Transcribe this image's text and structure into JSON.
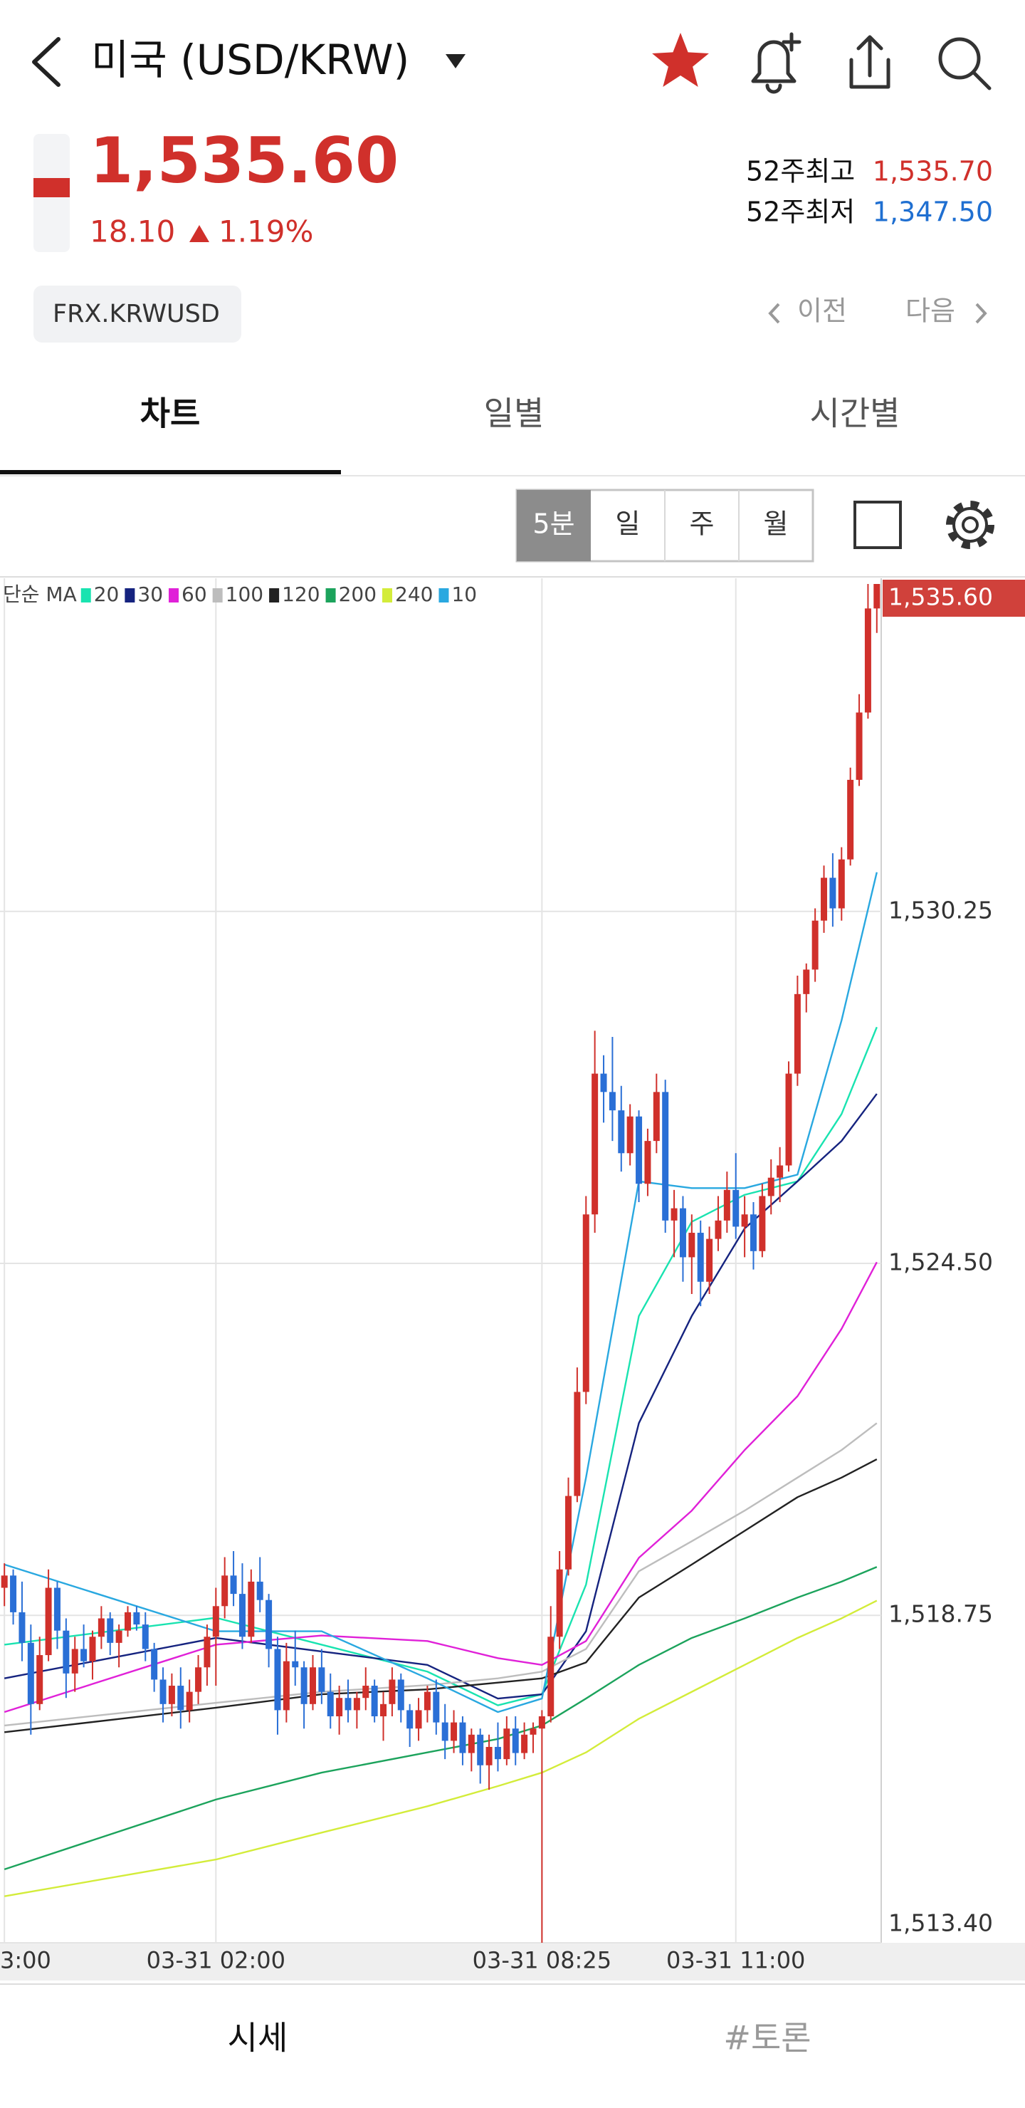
{
  "header": {
    "title": "미국 (USD/KRW)"
  },
  "quote": {
    "price": "1,535.60",
    "change": "18.10",
    "change_pct": "1.19%",
    "high_52w_label": "52주최고",
    "high_52w": "1,535.70",
    "low_52w_label": "52주최저",
    "low_52w": "1,347.50",
    "code": "FRX.KRWUSD",
    "prev": "이전",
    "next": "다음"
  },
  "tabs": [
    "차트",
    "일별",
    "시간별"
  ],
  "periods": [
    "5분",
    "일",
    "주",
    "월"
  ],
  "chart_data": {
    "type": "candlestick",
    "up_color": "#d0302b",
    "down_color": "#2a6fd6",
    "ylim": [
      1513.4,
      1535.6
    ],
    "yticks": [
      {
        "value": 1513.4,
        "label": "1,513.40"
      },
      {
        "value": 1518.75,
        "label": "1,518.75"
      },
      {
        "value": 1524.5,
        "label": "1,524.50"
      },
      {
        "value": 1530.25,
        "label": "1,530.25"
      }
    ],
    "grid": true,
    "last_price": {
      "value": 1535.6,
      "label": "1,535.60"
    },
    "categories": [
      "3:00",
      null,
      null,
      null,
      null,
      null,
      null,
      null,
      null,
      null,
      null,
      null,
      null,
      null,
      null,
      null,
      null,
      null,
      null,
      null,
      null,
      null,
      null,
      null,
      "03-31 02:00",
      null,
      null,
      null,
      null,
      null,
      null,
      null,
      null,
      null,
      null,
      null,
      null,
      null,
      null,
      null,
      null,
      null,
      null,
      null,
      null,
      null,
      null,
      null,
      null,
      null,
      null,
      null,
      null,
      null,
      null,
      null,
      null,
      null,
      null,
      null,
      null,
      "03-31 08:25",
      null,
      null,
      null,
      null,
      null,
      null,
      null,
      null,
      null,
      null,
      null,
      null,
      null,
      null,
      null,
      null,
      null,
      null,
      null,
      null,
      null,
      "03-31 11:00",
      null,
      null,
      null,
      null,
      null,
      null,
      null,
      null,
      null,
      null,
      null,
      null,
      null,
      null,
      null,
      null
    ],
    "ohlc": [
      [
        1519.2,
        1519.6,
        1518.9,
        1519.4
      ],
      [
        1519.4,
        1519.5,
        1518.6,
        1518.8
      ],
      [
        1518.8,
        1519.3,
        1518.0,
        1518.3
      ],
      [
        1518.3,
        1518.6,
        1516.8,
        1517.3
      ],
      [
        1517.3,
        1518.4,
        1517.2,
        1518.1
      ],
      [
        1518.1,
        1519.5,
        1518.0,
        1519.2
      ],
      [
        1519.2,
        1519.3,
        1518.2,
        1518.5
      ],
      [
        1518.5,
        1518.7,
        1517.4,
        1517.8
      ],
      [
        1517.8,
        1518.4,
        1517.5,
        1518.2
      ],
      [
        1518.2,
        1518.6,
        1517.9,
        1518.0
      ],
      [
        1518.0,
        1518.5,
        1517.7,
        1518.4
      ],
      [
        1518.4,
        1518.9,
        1518.2,
        1518.7
      ],
      [
        1518.7,
        1518.8,
        1518.1,
        1518.3
      ],
      [
        1518.3,
        1518.6,
        1517.9,
        1518.5
      ],
      [
        1518.5,
        1518.9,
        1518.4,
        1518.8
      ],
      [
        1518.8,
        1518.9,
        1518.5,
        1518.6
      ],
      [
        1518.6,
        1518.8,
        1518.0,
        1518.2
      ],
      [
        1518.2,
        1518.3,
        1517.5,
        1517.7
      ],
      [
        1517.7,
        1517.9,
        1517.0,
        1517.3
      ],
      [
        1517.3,
        1517.8,
        1517.1,
        1517.6
      ],
      [
        1517.6,
        1517.9,
        1516.9,
        1517.2
      ],
      [
        1517.2,
        1517.7,
        1517.0,
        1517.5
      ],
      [
        1517.5,
        1518.1,
        1517.3,
        1517.9
      ],
      [
        1517.9,
        1518.6,
        1517.6,
        1518.4
      ],
      [
        1518.4,
        1519.2,
        1517.6,
        1518.9
      ],
      [
        1518.9,
        1519.7,
        1518.7,
        1519.4
      ],
      [
        1519.4,
        1519.8,
        1518.9,
        1519.1
      ],
      [
        1519.1,
        1519.6,
        1518.2,
        1518.4
      ],
      [
        1518.4,
        1519.5,
        1518.3,
        1519.3
      ],
      [
        1519.3,
        1519.7,
        1518.8,
        1519.0
      ],
      [
        1519.0,
        1519.1,
        1517.9,
        1518.2
      ],
      [
        1518.2,
        1518.4,
        1516.8,
        1517.2
      ],
      [
        1517.2,
        1518.3,
        1517.0,
        1518.0
      ],
      [
        1518.0,
        1518.5,
        1517.6,
        1517.9
      ],
      [
        1517.9,
        1518.0,
        1516.9,
        1517.3
      ],
      [
        1517.3,
        1518.1,
        1517.2,
        1517.9
      ],
      [
        1517.9,
        1518.2,
        1517.3,
        1517.5
      ],
      [
        1517.5,
        1517.8,
        1516.9,
        1517.1
      ],
      [
        1517.1,
        1517.6,
        1516.8,
        1517.4
      ],
      [
        1517.4,
        1517.7,
        1517.0,
        1517.2
      ],
      [
        1517.2,
        1517.5,
        1516.9,
        1517.4
      ],
      [
        1517.4,
        1517.9,
        1517.2,
        1517.6
      ],
      [
        1517.6,
        1517.7,
        1517.0,
        1517.1
      ],
      [
        1517.1,
        1517.5,
        1516.7,
        1517.3
      ],
      [
        1517.3,
        1517.9,
        1517.1,
        1517.7
      ],
      [
        1517.7,
        1517.8,
        1517.0,
        1517.2
      ],
      [
        1517.2,
        1517.3,
        1516.6,
        1516.9
      ],
      [
        1516.9,
        1517.4,
        1516.7,
        1517.2
      ],
      [
        1517.2,
        1517.6,
        1517.0,
        1517.5
      ],
      [
        1517.5,
        1517.7,
        1516.8,
        1517.0
      ],
      [
        1517.0,
        1517.3,
        1516.4,
        1516.7
      ],
      [
        1516.7,
        1517.2,
        1516.5,
        1517.0
      ],
      [
        1517.0,
        1517.1,
        1516.3,
        1516.5
      ],
      [
        1516.5,
        1516.9,
        1516.2,
        1516.8
      ],
      [
        1516.8,
        1516.9,
        1516.0,
        1516.3
      ],
      [
        1516.3,
        1516.8,
        1515.9,
        1516.6
      ],
      [
        1516.6,
        1517.0,
        1516.2,
        1516.4
      ],
      [
        1516.4,
        1517.1,
        1516.3,
        1516.9
      ],
      [
        1516.9,
        1517.1,
        1516.3,
        1516.5
      ],
      [
        1516.5,
        1517.0,
        1516.4,
        1516.8
      ],
      [
        1516.8,
        1517.0,
        1516.5,
        1516.9
      ],
      [
        1516.9,
        1517.2,
        1513.4,
        1517.1
      ],
      [
        1517.1,
        1518.9,
        1517.0,
        1518.4
      ],
      [
        1518.4,
        1519.8,
        1518.2,
        1519.5
      ],
      [
        1519.5,
        1521.0,
        1519.4,
        1520.7
      ],
      [
        1520.7,
        1522.8,
        1520.6,
        1522.4
      ],
      [
        1522.4,
        1525.6,
        1522.2,
        1525.3
      ],
      [
        1525.3,
        1528.3,
        1525.0,
        1527.6
      ],
      [
        1527.6,
        1527.9,
        1526.8,
        1527.3
      ],
      [
        1527.3,
        1528.2,
        1526.5,
        1527.0
      ],
      [
        1527.0,
        1527.4,
        1526.0,
        1526.3
      ],
      [
        1526.3,
        1527.1,
        1526.1,
        1526.9
      ],
      [
        1526.9,
        1527.0,
        1525.5,
        1525.8
      ],
      [
        1525.8,
        1526.7,
        1525.6,
        1526.5
      ],
      [
        1526.5,
        1527.6,
        1526.3,
        1527.3
      ],
      [
        1527.3,
        1527.5,
        1525.0,
        1525.2
      ],
      [
        1525.2,
        1525.7,
        1524.6,
        1525.4
      ],
      [
        1525.4,
        1525.6,
        1524.2,
        1524.6
      ],
      [
        1524.6,
        1525.3,
        1524.0,
        1525.0
      ],
      [
        1525.0,
        1525.2,
        1523.8,
        1524.2
      ],
      [
        1524.2,
        1525.1,
        1524.0,
        1524.9
      ],
      [
        1524.9,
        1525.6,
        1524.7,
        1525.2
      ],
      [
        1525.2,
        1526.0,
        1525.0,
        1525.7
      ],
      [
        1525.7,
        1526.3,
        1524.9,
        1525.1
      ],
      [
        1525.1,
        1525.6,
        1524.6,
        1525.3
      ],
      [
        1525.3,
        1525.5,
        1524.4,
        1524.7
      ],
      [
        1524.7,
        1525.8,
        1524.6,
        1525.6
      ],
      [
        1525.6,
        1526.2,
        1525.3,
        1525.9
      ],
      [
        1525.9,
        1526.4,
        1525.5,
        1526.1
      ],
      [
        1526.1,
        1527.8,
        1526.0,
        1527.6
      ],
      [
        1527.6,
        1529.2,
        1527.4,
        1528.9
      ],
      [
        1528.9,
        1529.4,
        1528.6,
        1529.3
      ],
      [
        1529.3,
        1530.3,
        1529.1,
        1530.1
      ],
      [
        1530.1,
        1531.0,
        1529.9,
        1530.8
      ],
      [
        1530.8,
        1531.2,
        1530.0,
        1530.3
      ],
      [
        1530.3,
        1531.3,
        1530.1,
        1531.1
      ],
      [
        1531.1,
        1532.6,
        1531.0,
        1532.4
      ],
      [
        1532.4,
        1533.8,
        1532.3,
        1533.5
      ],
      [
        1533.5,
        1535.6,
        1533.4,
        1535.2
      ],
      [
        1535.2,
        1535.6,
        1534.8,
        1535.6
      ]
    ],
    "ma_legend_title": "단순 MA",
    "moving_averages": [
      {
        "name": "20",
        "color": "#19e3b0",
        "x": [
          0,
          24,
          36,
          48,
          56,
          61,
          66,
          72,
          78,
          84,
          90,
          95,
          99
        ],
        "values": [
          1518.27,
          1518.71,
          1518.27,
          1517.83,
          1517.28,
          1517.46,
          1519.25,
          1523.64,
          1525.18,
          1525.62,
          1525.84,
          1526.94,
          1528.36
        ]
      },
      {
        "name": "30",
        "color": "#15237f",
        "x": [
          0,
          24,
          36,
          48,
          56,
          61,
          66,
          72,
          78,
          84,
          90,
          95,
          99
        ],
        "values": [
          1517.72,
          1518.38,
          1518.16,
          1517.94,
          1517.39,
          1517.46,
          1518.49,
          1521.89,
          1523.64,
          1525.07,
          1525.84,
          1526.5,
          1527.27
        ]
      },
      {
        "name": "60",
        "color": "#e021d8",
        "x": [
          0,
          24,
          36,
          48,
          56,
          61,
          66,
          72,
          78,
          84,
          90,
          95,
          99
        ],
        "values": [
          1517.17,
          1518.27,
          1518.42,
          1518.33,
          1518.05,
          1517.94,
          1518.33,
          1519.69,
          1520.46,
          1521.45,
          1522.33,
          1523.43,
          1524.52
        ]
      },
      {
        "name": "100",
        "color": "#bdbdbd",
        "x": [
          0,
          24,
          36,
          48,
          56,
          61,
          66,
          72,
          78,
          84,
          90,
          95,
          99
        ],
        "values": [
          1516.95,
          1517.32,
          1517.5,
          1517.61,
          1517.72,
          1517.83,
          1518.2,
          1519.47,
          1519.96,
          1520.46,
          1521.0,
          1521.45,
          1521.89
        ]
      },
      {
        "name": "120",
        "color": "#222222",
        "x": [
          0,
          24,
          36,
          48,
          56,
          61,
          66,
          72,
          78,
          84,
          90,
          95,
          99
        ],
        "values": [
          1516.84,
          1517.24,
          1517.46,
          1517.54,
          1517.65,
          1517.72,
          1517.98,
          1519.04,
          1519.58,
          1520.13,
          1520.68,
          1521.0,
          1521.3
        ]
      },
      {
        "name": "200",
        "color": "#1ca35c",
        "x": [
          0,
          24,
          36,
          48,
          56,
          61,
          66,
          72,
          78,
          84,
          90,
          95,
          99
        ],
        "values": [
          1514.6,
          1515.74,
          1516.18,
          1516.51,
          1516.73,
          1516.95,
          1517.39,
          1517.94,
          1518.38,
          1518.7,
          1519.04,
          1519.3,
          1519.54
        ]
      },
      {
        "name": "240",
        "color": "#d3ec3a",
        "x": [
          0,
          24,
          36,
          48,
          56,
          61,
          66,
          72,
          78,
          84,
          90,
          95,
          99
        ],
        "values": [
          1514.16,
          1514.76,
          1515.2,
          1515.63,
          1515.96,
          1516.18,
          1516.51,
          1517.06,
          1517.5,
          1517.94,
          1518.38,
          1518.7,
          1518.99
        ]
      },
      {
        "name": "10",
        "color": "#29a8e0",
        "x": [
          0,
          24,
          36,
          48,
          56,
          61,
          66,
          72,
          78,
          84,
          90,
          95,
          99
        ],
        "values": [
          1519.58,
          1518.49,
          1518.49,
          1517.72,
          1517.17,
          1517.39,
          1521.0,
          1525.84,
          1525.73,
          1525.73,
          1525.95,
          1528.47,
          1530.89
        ]
      }
    ]
  },
  "bottom_tabs": [
    "시세",
    "#토론"
  ]
}
